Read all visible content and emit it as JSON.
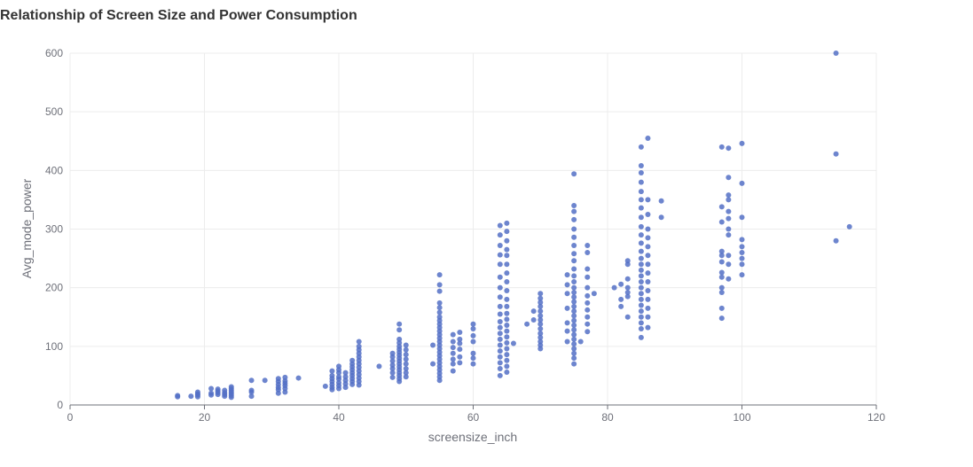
{
  "chart_data": {
    "type": "scatter",
    "title": "Relationship of Screen Size and Power Consumption",
    "xlabel": "screensize_inch",
    "ylabel": "Avg_mode_power",
    "xlim": [
      0,
      120
    ],
    "ylim": [
      0,
      600
    ],
    "x_ticks": [
      0,
      20,
      40,
      60,
      80,
      100,
      120
    ],
    "y_ticks": [
      0,
      100,
      200,
      300,
      400,
      500,
      600
    ],
    "grid": true,
    "legend": "none",
    "point_color": "#5470c6",
    "points": [
      [
        16,
        14
      ],
      [
        16,
        16
      ],
      [
        18,
        15
      ],
      [
        19,
        14
      ],
      [
        19,
        17
      ],
      [
        19,
        19
      ],
      [
        19,
        22
      ],
      [
        21,
        17
      ],
      [
        21,
        20
      ],
      [
        21,
        28
      ],
      [
        22,
        18
      ],
      [
        22,
        21
      ],
      [
        22,
        24
      ],
      [
        22,
        27
      ],
      [
        23,
        15
      ],
      [
        23,
        18
      ],
      [
        23,
        21
      ],
      [
        23,
        25
      ],
      [
        24,
        13
      ],
      [
        24,
        16
      ],
      [
        24,
        19
      ],
      [
        24,
        22
      ],
      [
        24,
        25
      ],
      [
        24,
        28
      ],
      [
        24,
        31
      ],
      [
        27,
        15
      ],
      [
        27,
        22
      ],
      [
        27,
        25
      ],
      [
        27,
        42
      ],
      [
        29,
        42
      ],
      [
        31,
        20
      ],
      [
        31,
        26
      ],
      [
        31,
        30
      ],
      [
        31,
        35
      ],
      [
        31,
        40
      ],
      [
        31,
        45
      ],
      [
        32,
        22
      ],
      [
        32,
        28
      ],
      [
        32,
        33
      ],
      [
        32,
        37
      ],
      [
        32,
        41
      ],
      [
        32,
        47
      ],
      [
        34,
        46
      ],
      [
        38,
        32
      ],
      [
        39,
        26
      ],
      [
        39,
        30
      ],
      [
        39,
        35
      ],
      [
        39,
        40
      ],
      [
        39,
        45
      ],
      [
        39,
        50
      ],
      [
        39,
        58
      ],
      [
        40,
        28
      ],
      [
        40,
        33
      ],
      [
        40,
        38
      ],
      [
        40,
        44
      ],
      [
        40,
        48
      ],
      [
        40,
        55
      ],
      [
        40,
        60
      ],
      [
        40,
        66
      ],
      [
        41,
        30
      ],
      [
        41,
        36
      ],
      [
        41,
        42
      ],
      [
        41,
        48
      ],
      [
        41,
        55
      ],
      [
        42,
        35
      ],
      [
        42,
        40
      ],
      [
        42,
        45
      ],
      [
        42,
        50
      ],
      [
        42,
        55
      ],
      [
        42,
        60
      ],
      [
        42,
        65
      ],
      [
        42,
        70
      ],
      [
        42,
        76
      ],
      [
        43,
        34
      ],
      [
        43,
        40
      ],
      [
        43,
        46
      ],
      [
        43,
        52
      ],
      [
        43,
        58
      ],
      [
        43,
        64
      ],
      [
        43,
        70
      ],
      [
        43,
        76
      ],
      [
        43,
        82
      ],
      [
        43,
        88
      ],
      [
        43,
        94
      ],
      [
        43,
        100
      ],
      [
        43,
        108
      ],
      [
        46,
        66
      ],
      [
        48,
        47
      ],
      [
        48,
        55
      ],
      [
        48,
        62
      ],
      [
        48,
        68
      ],
      [
        48,
        75
      ],
      [
        48,
        82
      ],
      [
        48,
        88
      ],
      [
        49,
        40
      ],
      [
        49,
        45
      ],
      [
        49,
        50
      ],
      [
        49,
        55
      ],
      [
        49,
        60
      ],
      [
        49,
        65
      ],
      [
        49,
        70
      ],
      [
        49,
        75
      ],
      [
        49,
        80
      ],
      [
        49,
        85
      ],
      [
        49,
        90
      ],
      [
        49,
        95
      ],
      [
        49,
        100
      ],
      [
        49,
        106
      ],
      [
        49,
        112
      ],
      [
        49,
        128
      ],
      [
        49,
        138
      ],
      [
        50,
        48
      ],
      [
        50,
        55
      ],
      [
        50,
        62
      ],
      [
        50,
        70
      ],
      [
        50,
        78
      ],
      [
        50,
        86
      ],
      [
        50,
        94
      ],
      [
        50,
        102
      ],
      [
        54,
        70
      ],
      [
        54,
        102
      ],
      [
        55,
        42
      ],
      [
        55,
        48
      ],
      [
        55,
        54
      ],
      [
        55,
        60
      ],
      [
        55,
        66
      ],
      [
        55,
        72
      ],
      [
        55,
        78
      ],
      [
        55,
        84
      ],
      [
        55,
        90
      ],
      [
        55,
        96
      ],
      [
        55,
        102
      ],
      [
        55,
        108
      ],
      [
        55,
        114
      ],
      [
        55,
        120
      ],
      [
        55,
        126
      ],
      [
        55,
        132
      ],
      [
        55,
        138
      ],
      [
        55,
        144
      ],
      [
        55,
        150
      ],
      [
        55,
        158
      ],
      [
        55,
        166
      ],
      [
        55,
        174
      ],
      [
        55,
        194
      ],
      [
        55,
        205
      ],
      [
        55,
        222
      ],
      [
        57,
        58
      ],
      [
        57,
        70
      ],
      [
        57,
        78
      ],
      [
        57,
        88
      ],
      [
        57,
        98
      ],
      [
        57,
        108
      ],
      [
        57,
        120
      ],
      [
        58,
        72
      ],
      [
        58,
        82
      ],
      [
        58,
        95
      ],
      [
        58,
        105
      ],
      [
        58,
        112
      ],
      [
        58,
        124
      ],
      [
        60,
        70
      ],
      [
        60,
        80
      ],
      [
        60,
        88
      ],
      [
        60,
        108
      ],
      [
        60,
        118
      ],
      [
        60,
        130
      ],
      [
        60,
        138
      ],
      [
        64,
        50
      ],
      [
        64,
        62
      ],
      [
        64,
        72
      ],
      [
        64,
        82
      ],
      [
        64,
        92
      ],
      [
        64,
        102
      ],
      [
        64,
        112
      ],
      [
        64,
        122
      ],
      [
        64,
        132
      ],
      [
        64,
        142
      ],
      [
        64,
        155
      ],
      [
        64,
        168
      ],
      [
        64,
        184
      ],
      [
        64,
        200
      ],
      [
        64,
        218
      ],
      [
        64,
        240
      ],
      [
        64,
        256
      ],
      [
        64,
        272
      ],
      [
        64,
        290
      ],
      [
        64,
        306
      ],
      [
        65,
        56
      ],
      [
        65,
        66
      ],
      [
        65,
        76
      ],
      [
        65,
        86
      ],
      [
        65,
        96
      ],
      [
        65,
        106
      ],
      [
        65,
        116
      ],
      [
        65,
        126
      ],
      [
        65,
        136
      ],
      [
        65,
        146
      ],
      [
        65,
        156
      ],
      [
        65,
        168
      ],
      [
        65,
        180
      ],
      [
        65,
        195
      ],
      [
        65,
        210
      ],
      [
        65,
        225
      ],
      [
        65,
        240
      ],
      [
        65,
        255
      ],
      [
        65,
        265
      ],
      [
        65,
        280
      ],
      [
        65,
        296
      ],
      [
        65,
        310
      ],
      [
        66,
        105
      ],
      [
        68,
        138
      ],
      [
        69,
        145
      ],
      [
        69,
        160
      ],
      [
        70,
        96
      ],
      [
        70,
        102
      ],
      [
        70,
        108
      ],
      [
        70,
        115
      ],
      [
        70,
        122
      ],
      [
        70,
        130
      ],
      [
        70,
        138
      ],
      [
        70,
        145
      ],
      [
        70,
        152
      ],
      [
        70,
        160
      ],
      [
        70,
        168
      ],
      [
        70,
        175
      ],
      [
        70,
        182
      ],
      [
        70,
        190
      ],
      [
        74,
        108
      ],
      [
        74,
        126
      ],
      [
        74,
        140
      ],
      [
        74,
        165
      ],
      [
        74,
        190
      ],
      [
        74,
        205
      ],
      [
        74,
        222
      ],
      [
        75,
        70
      ],
      [
        75,
        80
      ],
      [
        75,
        88
      ],
      [
        75,
        96
      ],
      [
        75,
        104
      ],
      [
        75,
        112
      ],
      [
        75,
        120
      ],
      [
        75,
        128
      ],
      [
        75,
        136
      ],
      [
        75,
        144
      ],
      [
        75,
        152
      ],
      [
        75,
        160
      ],
      [
        75,
        168
      ],
      [
        75,
        176
      ],
      [
        75,
        184
      ],
      [
        75,
        192
      ],
      [
        75,
        200
      ],
      [
        75,
        210
      ],
      [
        75,
        220
      ],
      [
        75,
        232
      ],
      [
        75,
        246
      ],
      [
        75,
        258
      ],
      [
        75,
        272
      ],
      [
        75,
        286
      ],
      [
        75,
        300
      ],
      [
        75,
        316
      ],
      [
        75,
        330
      ],
      [
        75,
        340
      ],
      [
        75,
        394
      ],
      [
        76,
        108
      ],
      [
        77,
        125
      ],
      [
        77,
        138
      ],
      [
        77,
        150
      ],
      [
        77,
        162
      ],
      [
        77,
        174
      ],
      [
        77,
        186
      ],
      [
        77,
        200
      ],
      [
        77,
        218
      ],
      [
        77,
        232
      ],
      [
        77,
        260
      ],
      [
        77,
        272
      ],
      [
        78,
        190
      ],
      [
        81,
        200
      ],
      [
        82,
        168
      ],
      [
        82,
        180
      ],
      [
        82,
        206
      ],
      [
        83,
        150
      ],
      [
        83,
        185
      ],
      [
        83,
        192
      ],
      [
        83,
        200
      ],
      [
        83,
        215
      ],
      [
        83,
        240
      ],
      [
        83,
        246
      ],
      [
        85,
        115
      ],
      [
        85,
        130
      ],
      [
        85,
        140
      ],
      [
        85,
        150
      ],
      [
        85,
        160
      ],
      [
        85,
        170
      ],
      [
        85,
        180
      ],
      [
        85,
        190
      ],
      [
        85,
        200
      ],
      [
        85,
        210
      ],
      [
        85,
        220
      ],
      [
        85,
        230
      ],
      [
        85,
        240
      ],
      [
        85,
        250
      ],
      [
        85,
        262
      ],
      [
        85,
        276
      ],
      [
        85,
        290
      ],
      [
        85,
        304
      ],
      [
        85,
        320
      ],
      [
        85,
        336
      ],
      [
        85,
        350
      ],
      [
        85,
        364
      ],
      [
        85,
        380
      ],
      [
        85,
        396
      ],
      [
        85,
        408
      ],
      [
        85,
        440
      ],
      [
        86,
        132
      ],
      [
        86,
        150
      ],
      [
        86,
        165
      ],
      [
        86,
        180
      ],
      [
        86,
        195
      ],
      [
        86,
        210
      ],
      [
        86,
        225
      ],
      [
        86,
        240
      ],
      [
        86,
        255
      ],
      [
        86,
        270
      ],
      [
        86,
        285
      ],
      [
        86,
        300
      ],
      [
        86,
        325
      ],
      [
        86,
        350
      ],
      [
        86,
        455
      ],
      [
        88,
        320
      ],
      [
        88,
        348
      ],
      [
        97,
        148
      ],
      [
        97,
        165
      ],
      [
        97,
        192
      ],
      [
        97,
        200
      ],
      [
        97,
        218
      ],
      [
        97,
        226
      ],
      [
        97,
        244
      ],
      [
        97,
        255
      ],
      [
        97,
        262
      ],
      [
        97,
        312
      ],
      [
        97,
        338
      ],
      [
        97,
        440
      ],
      [
        98,
        215
      ],
      [
        98,
        240
      ],
      [
        98,
        255
      ],
      [
        98,
        290
      ],
      [
        98,
        300
      ],
      [
        98,
        318
      ],
      [
        98,
        330
      ],
      [
        98,
        350
      ],
      [
        98,
        358
      ],
      [
        98,
        388
      ],
      [
        98,
        438
      ],
      [
        100,
        222
      ],
      [
        100,
        240
      ],
      [
        100,
        250
      ],
      [
        100,
        260
      ],
      [
        100,
        270
      ],
      [
        100,
        282
      ],
      [
        100,
        320
      ],
      [
        100,
        378
      ],
      [
        100,
        446
      ],
      [
        114,
        280
      ],
      [
        114,
        428
      ],
      [
        114,
        600
      ],
      [
        116,
        304
      ]
    ]
  }
}
